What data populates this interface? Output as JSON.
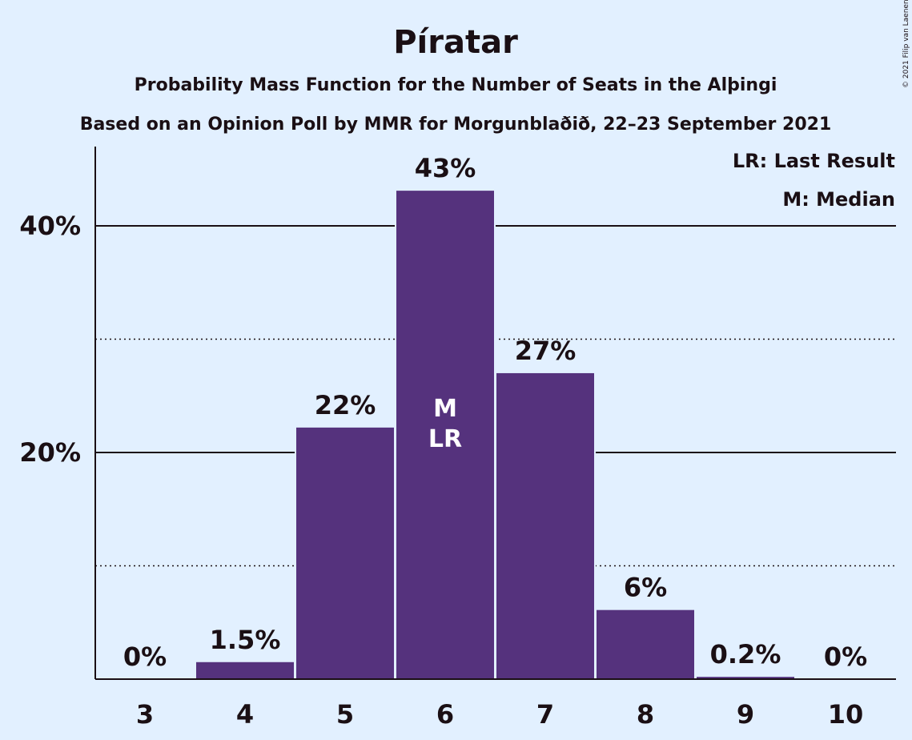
{
  "colors": {
    "background": "#e2f0ff",
    "bar": "#55327d",
    "text": "#1a0f14",
    "marker_text": "#ffffff"
  },
  "copyright": "© 2021 Filip van Laenen",
  "legend": {
    "lr": "LR: Last Result",
    "m": "M: Median"
  },
  "chart_data": {
    "type": "bar",
    "title": "Píratar",
    "subtitle": "Probability Mass Function for the Number of Seats in the Alþingi",
    "subtitle2": "Based on an Opinion Poll by MMR for Morgunblaðið, 22–23 September 2021",
    "categories": [
      "3",
      "4",
      "5",
      "6",
      "7",
      "8",
      "9",
      "10"
    ],
    "values": [
      0,
      1.5,
      22.2,
      43.1,
      27.0,
      6.1,
      0.2,
      0
    ],
    "value_labels": [
      "0%",
      "1.5%",
      "22%",
      "43%",
      "27%",
      "6%",
      "0.2%",
      "0%"
    ],
    "ylim": [
      0,
      47
    ],
    "yticks_major": [
      20,
      40
    ],
    "yticks_major_labels": [
      "20%",
      "40%"
    ],
    "yticks_minor": [
      10,
      30
    ],
    "median_category": "6",
    "last_result_category": "6",
    "median_label": "M",
    "last_result_label": "LR",
    "legend_placement": "top-right"
  }
}
